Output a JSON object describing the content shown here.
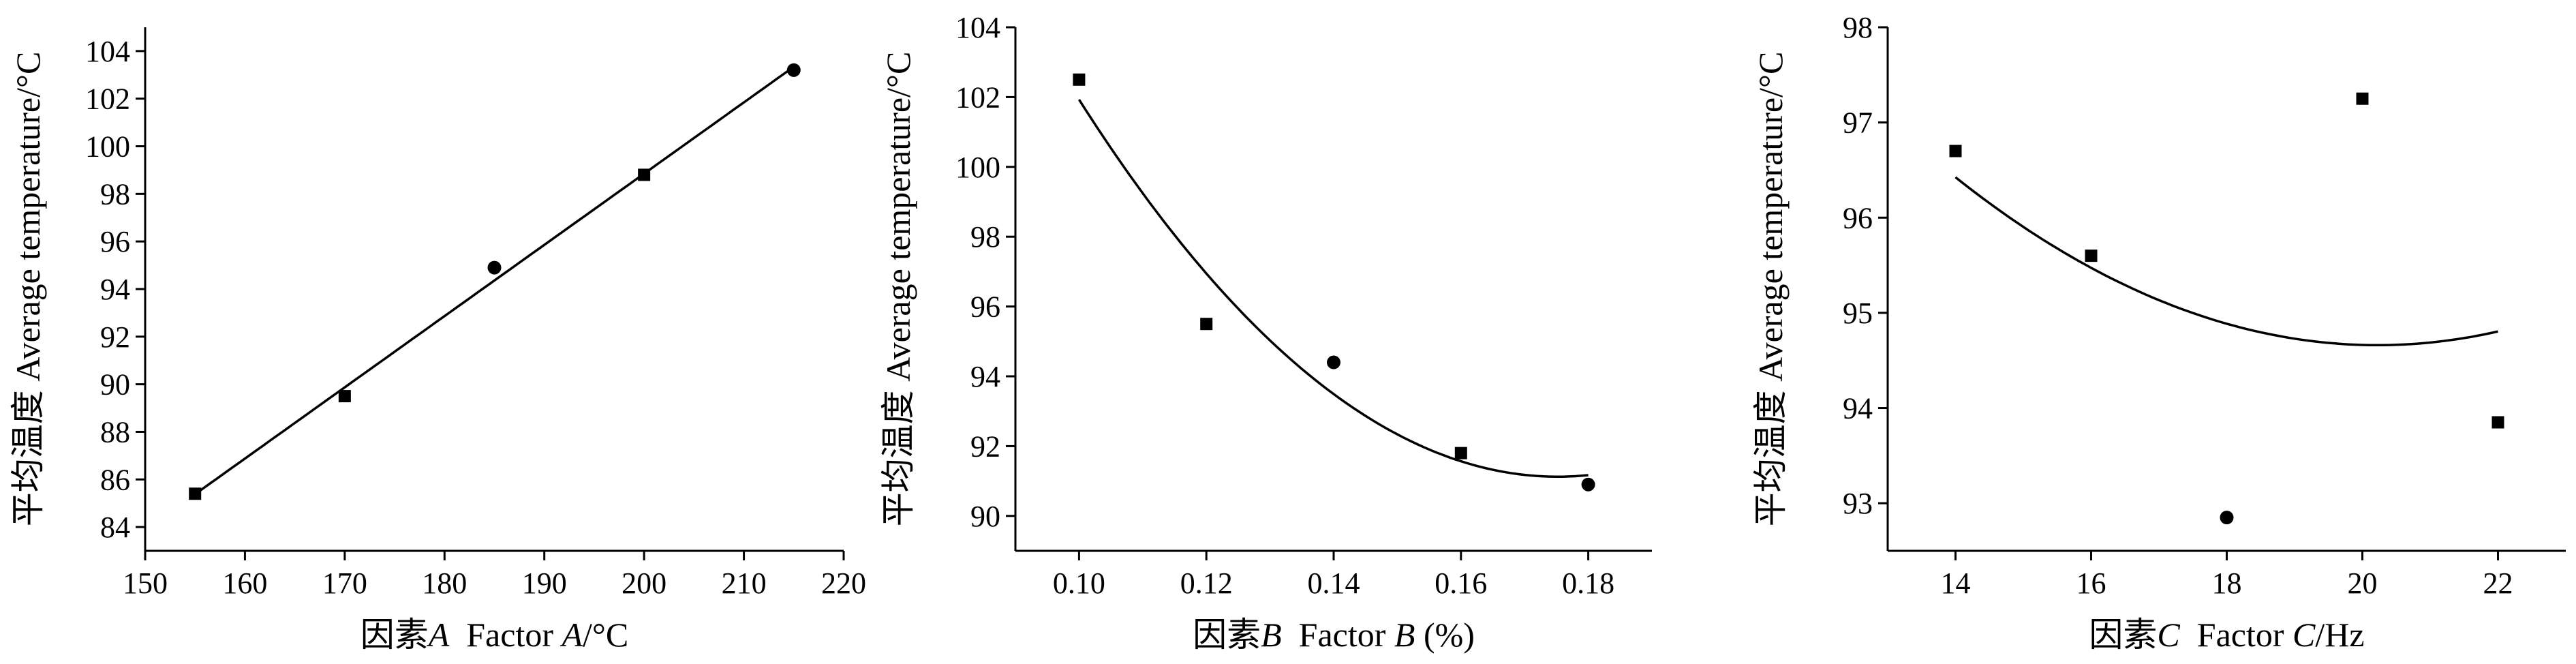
{
  "chart_data": [
    {
      "type": "scatter",
      "x": [
        155,
        170,
        185,
        200,
        215
      ],
      "y": [
        85.4,
        89.5,
        94.9,
        98.8,
        103.2
      ],
      "markers": [
        "square",
        "square",
        "circle",
        "square",
        "circle"
      ],
      "fit": "linear",
      "xlim": [
        150,
        220
      ],
      "ylim": [
        83,
        105
      ],
      "xticks": [
        150,
        160,
        170,
        180,
        190,
        200,
        210,
        220
      ],
      "yticks": [
        84,
        86,
        88,
        90,
        92,
        94,
        96,
        98,
        100,
        102,
        104
      ],
      "xtick_decimals": 0,
      "ytick_decimals": 0,
      "ylabel": "平均温度 Average temperature/°C",
      "xlabel_parts": [
        {
          "text": "因素",
          "italic": false
        },
        {
          "text": "A",
          "italic": true
        },
        {
          "text": "  Factor ",
          "italic": false
        },
        {
          "text": "A",
          "italic": true
        },
        {
          "text": "/°C",
          "italic": false
        }
      ]
    },
    {
      "type": "scatter",
      "x": [
        0.1,
        0.12,
        0.14,
        0.16,
        0.18
      ],
      "y": [
        102.5,
        95.5,
        94.4,
        91.8,
        90.9
      ],
      "markers": [
        "square",
        "square",
        "circle",
        "square",
        "circle"
      ],
      "fit": "quadratic",
      "xlim": [
        0.09,
        0.19
      ],
      "ylim": [
        89,
        104
      ],
      "xticks": [
        0.1,
        0.12,
        0.14,
        0.16,
        0.18
      ],
      "yticks": [
        90,
        92,
        94,
        96,
        98,
        100,
        102,
        104
      ],
      "xtick_decimals": 2,
      "ytick_decimals": 0,
      "ylabel": "平均温度 Average temperature/°C",
      "xlabel_parts": [
        {
          "text": "因素",
          "italic": false
        },
        {
          "text": "B",
          "italic": true
        },
        {
          "text": "  Factor ",
          "italic": false
        },
        {
          "text": "B",
          "italic": true
        },
        {
          "text": " (%)",
          "italic": false
        }
      ]
    },
    {
      "type": "scatter",
      "x": [
        14,
        16,
        18,
        20,
        22
      ],
      "y": [
        96.7,
        95.6,
        92.85,
        97.25,
        93.85
      ],
      "markers": [
        "square",
        "square",
        "circle",
        "square",
        "square"
      ],
      "fit": "quadratic",
      "xlim": [
        13,
        23
      ],
      "ylim": [
        92.5,
        98
      ],
      "xticks": [
        14,
        16,
        18,
        20,
        22
      ],
      "yticks": [
        93,
        94,
        95,
        96,
        97,
        98
      ],
      "xtick_decimals": 0,
      "ytick_decimals": 0,
      "ylabel": "平均温度 Average temperature/°C",
      "xlabel_parts": [
        {
          "text": "因素",
          "italic": false
        },
        {
          "text": "C",
          "italic": true
        },
        {
          "text": "  Factor ",
          "italic": false
        },
        {
          "text": "C",
          "italic": true
        },
        {
          "text": "/Hz",
          "italic": false
        }
      ]
    }
  ]
}
